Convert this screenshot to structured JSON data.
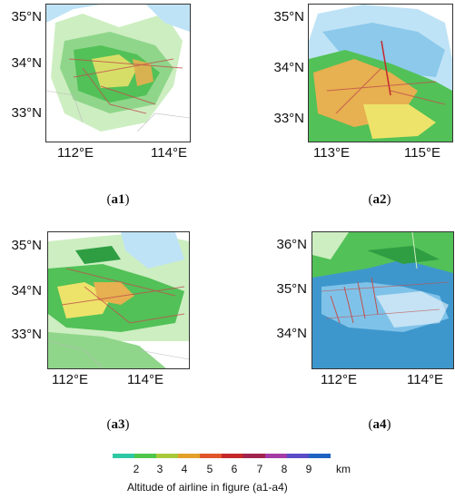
{
  "panels": [
    {
      "label_prefix": "(",
      "label_bold": "a1",
      "label_suffix": ")",
      "lat_ticks": [
        "35°N",
        "34°N",
        "33°N"
      ],
      "lon_ticks": [
        "112°E",
        "114°E"
      ]
    },
    {
      "label_prefix": "(",
      "label_bold": "a2",
      "label_suffix": ")",
      "lat_ticks": [
        "35°N",
        "34°N",
        "33°N"
      ],
      "lon_ticks": [
        "113°E",
        "115°E"
      ]
    },
    {
      "label_prefix": "(",
      "label_bold": "a3",
      "label_suffix": ")",
      "lat_ticks": [
        "35°N",
        "34°N",
        "33°N"
      ],
      "lon_ticks": [
        "112°E",
        "114°E"
      ]
    },
    {
      "label_prefix": "(",
      "label_bold": "a4",
      "label_suffix": ")",
      "lat_ticks": [
        "36°N",
        "35°N",
        "34°N"
      ],
      "lon_ticks": [
        "112°E",
        "114°E"
      ]
    }
  ],
  "colorbar": {
    "ticks": [
      "2",
      "3",
      "4",
      "5",
      "6",
      "7",
      "8",
      "9"
    ],
    "unit": "km",
    "title": "Altitude of airline in figure (a1-a4)",
    "colors": [
      "#2ec9a4",
      "#4fc64a",
      "#a9c93a",
      "#e3a12a",
      "#e0562a",
      "#c4282b",
      "#a0244f",
      "#a43aa6",
      "#5a4bc8",
      "#1f62c4"
    ]
  },
  "echo_colors": {
    "light_green": "#cdeec1",
    "green": "#52c157",
    "dark_green": "#2f9e43",
    "yellow": "#eee36a",
    "orange": "#e7b050",
    "light_blue": "#bfe3f6",
    "blue": "#3b8fe0",
    "route": "#c0504d"
  }
}
